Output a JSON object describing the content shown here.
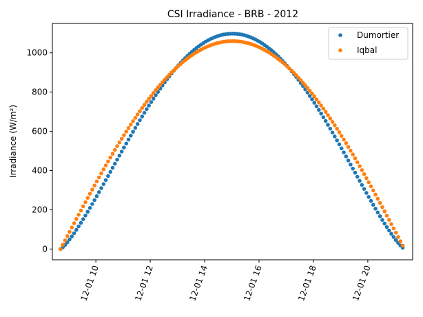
{
  "chart_data": {
    "type": "scatter",
    "title": "CSI Irradiance - BRB - 2012",
    "xlabel": "",
    "ylabel": "Irradiance (W/m²)",
    "x_ticks": [
      "12-01 10",
      "12-01 12",
      "12-01 14",
      "12-01 16",
      "12-01 18",
      "12-01 20"
    ],
    "x_tick_hours": [
      10,
      12,
      14,
      16,
      18,
      20
    ],
    "y_ticks": [
      0,
      200,
      400,
      600,
      800,
      1000
    ],
    "xlim_hours": [
      8.4,
      21.65
    ],
    "ylim": [
      -55,
      1150
    ],
    "grid": false,
    "legend_position": "top-right",
    "x_range_hours": [
      8.7,
      21.35
    ],
    "sample_step_minutes": 5,
    "series": [
      {
        "name": "Dumortier",
        "color": "#1f77b4",
        "model": {
          "sunrise_hour": 8.7,
          "sunset_hour": 21.35,
          "peak": 1098,
          "exponent": 1.25
        },
        "sample_points": [
          [
            8.7,
            0
          ],
          [
            10.0,
            268
          ],
          [
            12.0,
            760
          ],
          [
            14.0,
            1050
          ],
          [
            15.0,
            1098
          ],
          [
            16.0,
            1055
          ],
          [
            18.0,
            660
          ],
          [
            20.0,
            160
          ],
          [
            21.35,
            0
          ]
        ]
      },
      {
        "name": "Iqbal",
        "color": "#ff7f0e",
        "model": {
          "sunrise_hour": 8.7,
          "sunset_hour": 21.35,
          "peak": 1060,
          "exponent": 1.0
        },
        "sample_points": [
          [
            8.7,
            0
          ],
          [
            10.0,
            330
          ],
          [
            12.0,
            780
          ],
          [
            14.0,
            1020
          ],
          [
            15.0,
            1060
          ],
          [
            16.0,
            1025
          ],
          [
            18.0,
            665
          ],
          [
            20.0,
            220
          ],
          [
            21.35,
            0
          ]
        ]
      }
    ]
  }
}
